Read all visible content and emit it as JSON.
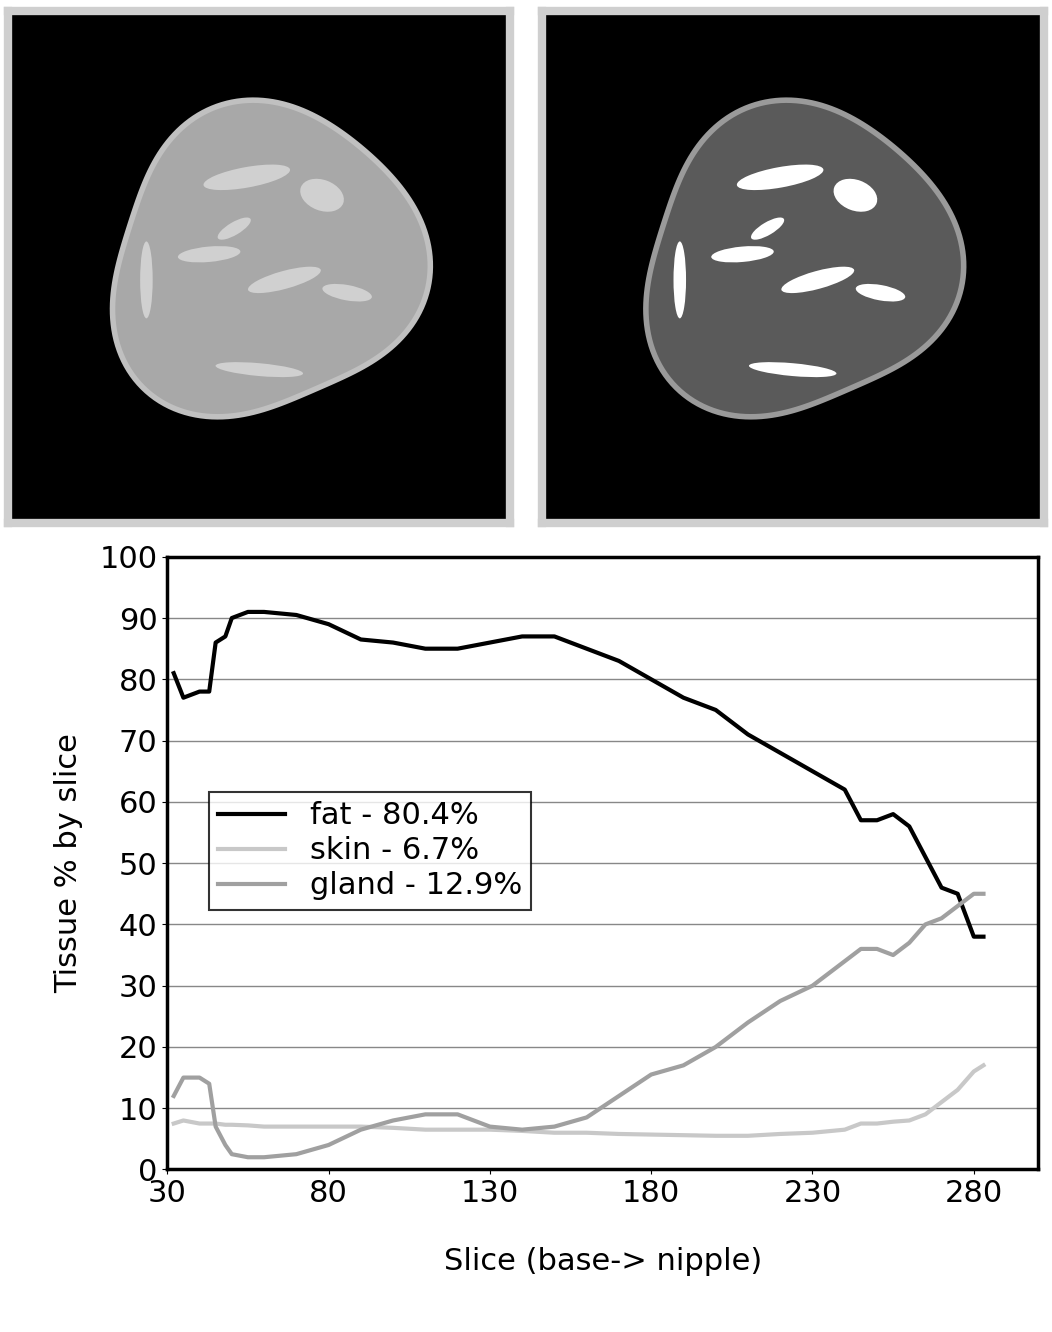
{
  "chart_data": {
    "type": "line",
    "x_label": "Slice (base-> nipple)",
    "y_label": "Tissue % by slice",
    "x": [
      32,
      35,
      40,
      43,
      45,
      48,
      50,
      55,
      60,
      70,
      80,
      90,
      100,
      110,
      120,
      130,
      140,
      150,
      160,
      170,
      180,
      190,
      200,
      210,
      220,
      230,
      240,
      245,
      250,
      255,
      260,
      265,
      270,
      275,
      280,
      283
    ],
    "series": [
      {
        "name": "fat - 80.4%",
        "color": "#000000",
        "values": [
          81,
          77,
          78,
          78,
          86,
          87,
          90,
          91,
          91,
          90.5,
          89,
          86.5,
          86,
          85,
          85,
          86,
          87,
          87,
          85,
          83,
          80,
          77,
          75,
          71,
          68,
          65,
          62,
          57,
          57,
          58,
          56,
          51,
          46,
          45,
          38,
          38
        ]
      },
      {
        "name": "skin - 6.7%",
        "color": "#c8c8c8",
        "values": [
          7.5,
          8,
          7.5,
          7.5,
          7.5,
          7.3,
          7.3,
          7.2,
          7,
          7,
          7,
          7,
          6.8,
          6.5,
          6.5,
          6.5,
          6.3,
          6,
          6,
          5.8,
          5.7,
          5.6,
          5.5,
          5.5,
          5.8,
          6,
          6.5,
          7.5,
          7.5,
          7.8,
          8,
          9,
          11,
          13,
          16,
          17
        ]
      },
      {
        "name": "gland - 12.9%",
        "color": "#a0a0a0",
        "values": [
          12,
          15,
          15,
          14,
          7,
          4,
          2.5,
          2,
          2,
          2.5,
          4,
          6.5,
          8,
          9,
          9,
          7,
          6.5,
          7,
          8.5,
          12,
          15.5,
          17,
          20,
          24,
          27.5,
          30,
          34,
          36,
          36,
          35,
          37,
          40,
          41,
          43,
          45,
          45
        ]
      }
    ],
    "xlim": [
      30,
      300
    ],
    "xticks": [
      30,
      80,
      130,
      180,
      230,
      280
    ],
    "ylim": [
      0,
      100
    ],
    "yticks": [
      0,
      10,
      20,
      30,
      40,
      50,
      60,
      70,
      80,
      90,
      100
    ],
    "grid": true,
    "legend": "center left"
  }
}
